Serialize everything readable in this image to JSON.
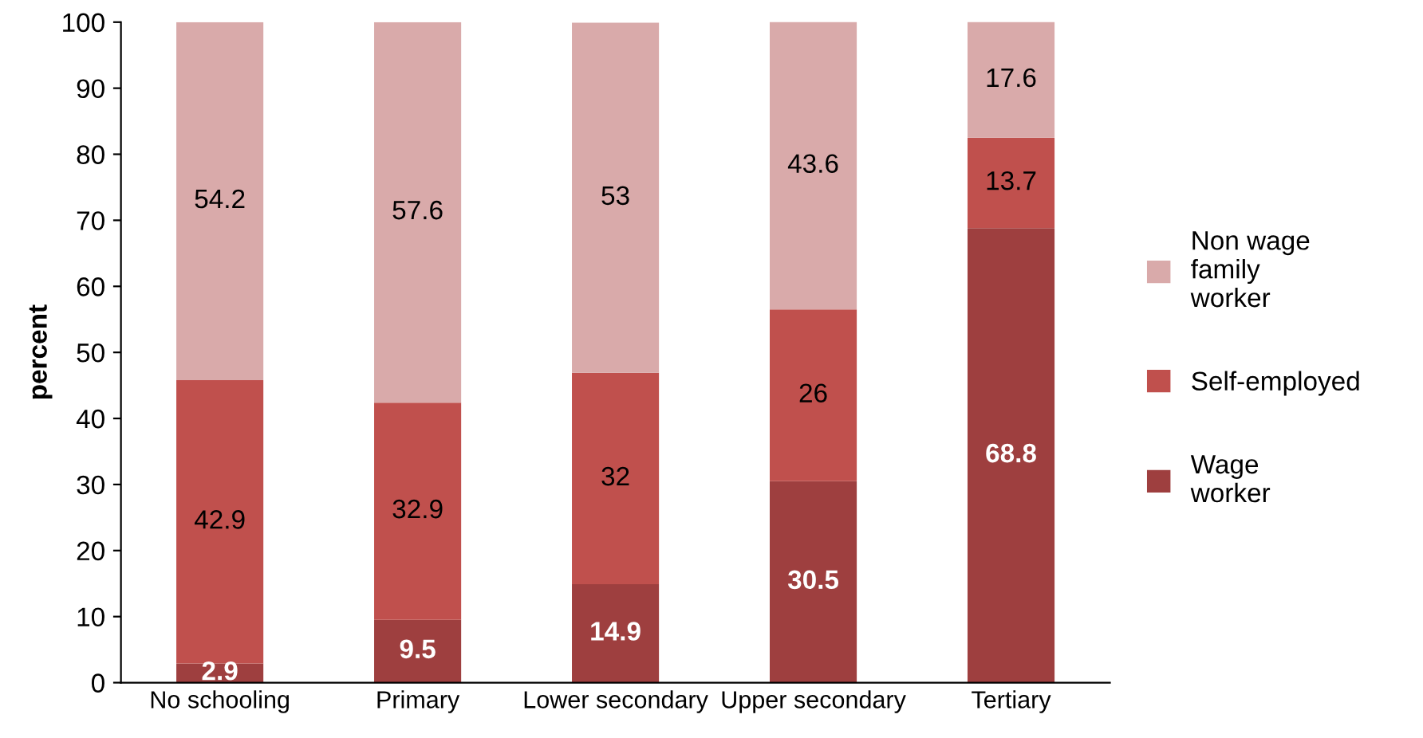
{
  "chart_data": {
    "type": "bar",
    "stacked": true,
    "ylabel": "percent",
    "categories": [
      "No schooling",
      "Primary",
      "Lower secondary",
      "Upper secondary",
      "Tertiary"
    ],
    "series": [
      {
        "name": "Wage worker",
        "color": "#9e3f3f",
        "values": [
          2.9,
          9.5,
          14.9,
          30.5,
          68.8
        ]
      },
      {
        "name": "Self-employed",
        "color": "#c0504d",
        "values": [
          42.9,
          32.9,
          32,
          26,
          13.7
        ]
      },
      {
        "name": "Non wage family worker",
        "color": "#d9aaaa",
        "values": [
          54.2,
          57.6,
          53,
          43.6,
          17.6
        ]
      }
    ],
    "ylim": [
      0,
      100
    ],
    "yticks": [
      0,
      10,
      20,
      30,
      40,
      50,
      60,
      70,
      80,
      90,
      100
    ],
    "data_labels": true,
    "legend": "right",
    "grid": false
  }
}
